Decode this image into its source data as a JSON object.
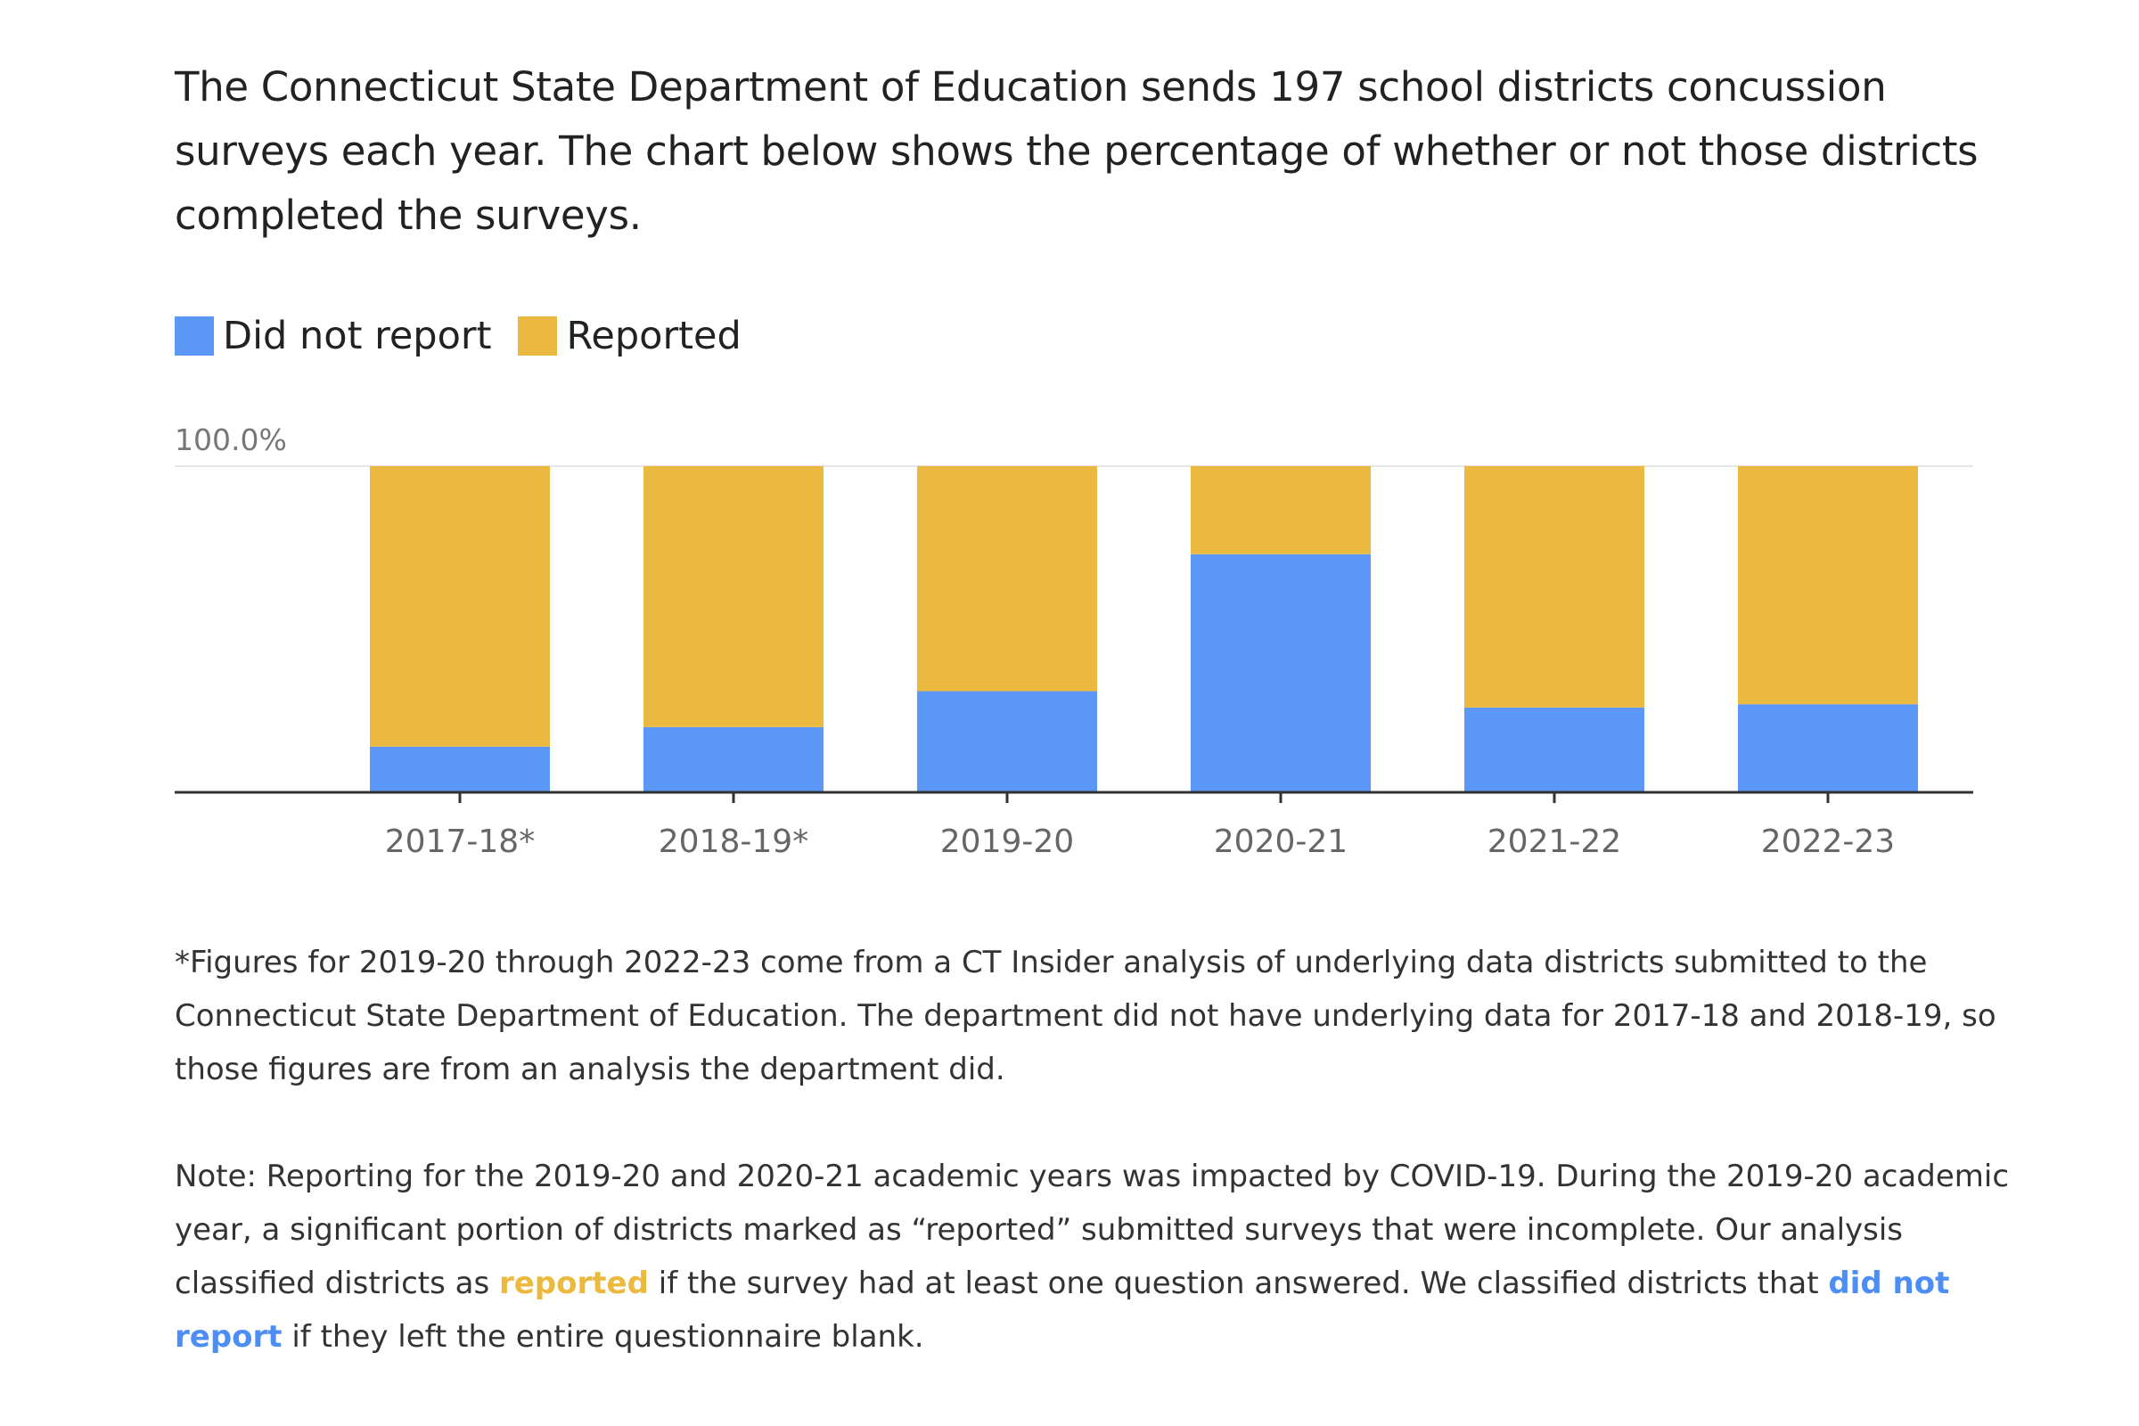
{
  "intro": "The Connecticut State Department of Education sends 197 school districts concussion surveys each year. The chart below shows the percentage of whether or not those districts completed the surveys.",
  "legend": [
    {
      "label": "Did not report",
      "color": "#5a97f7"
    },
    {
      "label": "Reported",
      "color": "#ecb940"
    }
  ],
  "chart_data": {
    "type": "bar",
    "stacked": true,
    "title": "",
    "xlabel": "",
    "ylabel": "",
    "ylim": [
      0,
      100
    ],
    "yticks": [
      "100.0%"
    ],
    "categories": [
      "2017-18*",
      "2018-19*",
      "2019-20",
      "2020-21",
      "2021-22",
      "2022-23"
    ],
    "series": [
      {
        "name": "Did not report",
        "color": "#5a97f7",
        "values": [
          14,
          20,
          31,
          73,
          26,
          27
        ]
      },
      {
        "name": "Reported",
        "color": "#ecb940",
        "values": [
          86,
          80,
          69,
          27,
          74,
          73
        ]
      }
    ],
    "grid": true,
    "legend_position": "top-left"
  },
  "footnote": "*Figures for 2019-20 through 2022-23 come from a CT Insider analysis of underlying data districts submitted to the Connecticut State Department of Education. The department did not have underlying data for 2017-18 and 2018-19, so those figures are from an analysis the department did.",
  "note": {
    "part1": "Note: Reporting for the 2019-20 and 2020-21 academic years was impacted by COVID-19. During the 2019-20 academic year, a significant portion of districts marked as “reported” submitted surveys that were incomplete. Our analysis classified districts as ",
    "highlight_reported": "reported",
    "part2": " if the survey had at least one question answered. We classified districts that ",
    "highlight_not_report": "did not report",
    "part3": " if they left the entire questionnaire blank."
  }
}
